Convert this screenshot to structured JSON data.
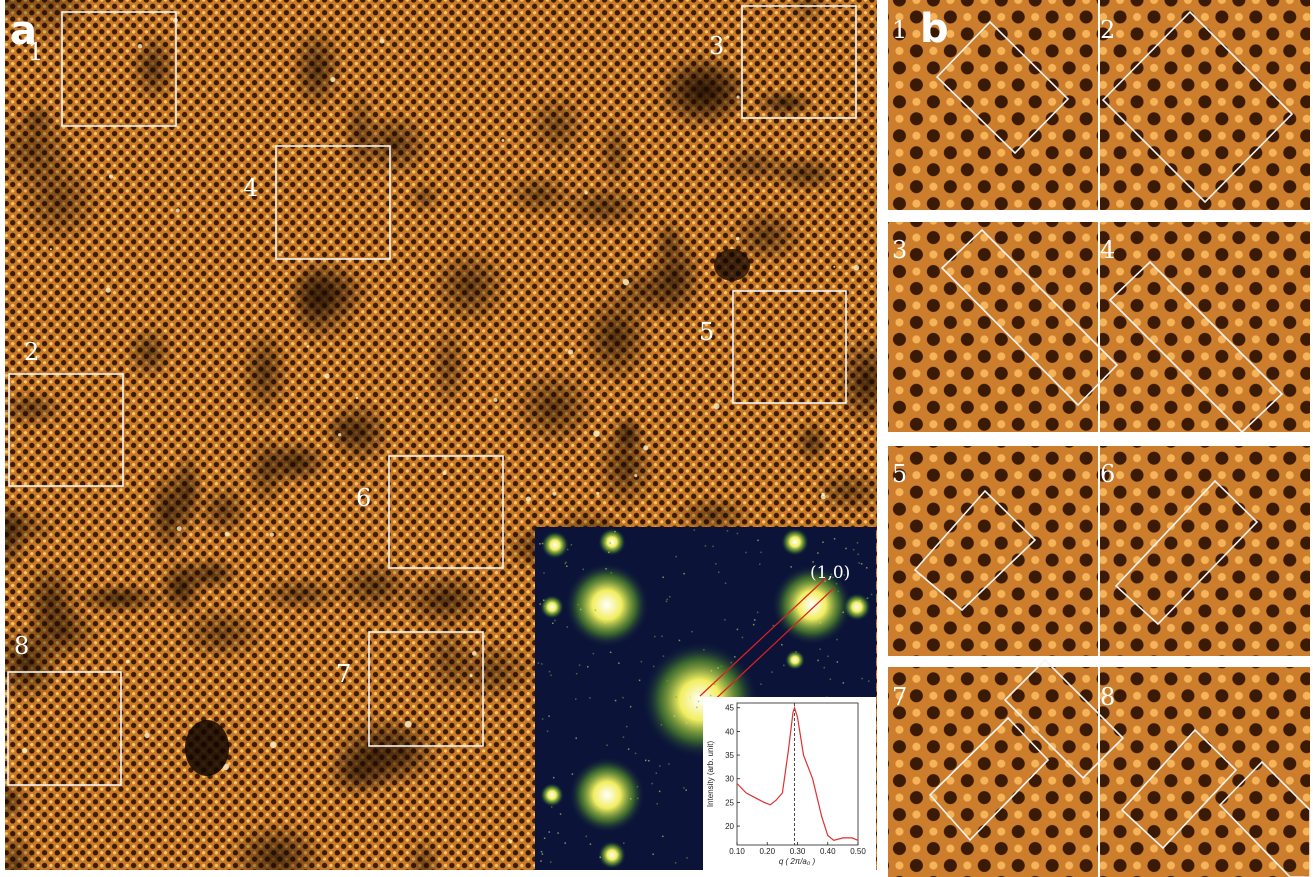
{
  "panel_a": {
    "label": "a",
    "box_labels": [
      "1",
      "2",
      "3",
      "4",
      "5",
      "6",
      "7",
      "8"
    ]
  },
  "fft_inset": {
    "peak_label": "(1,0)"
  },
  "panel_b": {
    "label": "b",
    "tile_labels": [
      "1",
      "2",
      "3",
      "4",
      "5",
      "6",
      "7",
      "8"
    ]
  },
  "inset_plot": {
    "type": "line",
    "y_label": "Intensity (arb. unit)",
    "x_label": "q ( 2π/a₀ )",
    "x": [
      0.1,
      0.13,
      0.16,
      0.19,
      0.21,
      0.23,
      0.25,
      0.27,
      0.285,
      0.29,
      0.3,
      0.32,
      0.35,
      0.38,
      0.4,
      0.42,
      0.45,
      0.48,
      0.5
    ],
    "values": [
      29,
      27,
      26,
      25,
      24.5,
      25.5,
      27,
      36,
      44,
      45,
      43,
      35,
      30,
      22,
      18,
      17,
      17.5,
      17.5,
      17
    ],
    "color": "#e03030",
    "marker_x": 0.29,
    "xlim": [
      0.1,
      0.5
    ],
    "ylim": [
      16,
      46
    ],
    "xticks": [
      {
        "value": 0.1,
        "label": "0.10"
      },
      {
        "value": 0.2,
        "label": "0.20"
      },
      {
        "value": 0.3,
        "label": "0.30"
      },
      {
        "value": 0.4,
        "label": "0.40"
      },
      {
        "value": 0.5,
        "label": "0.50"
      }
    ],
    "yticks": [
      20,
      25,
      30,
      35,
      40,
      45
    ]
  }
}
